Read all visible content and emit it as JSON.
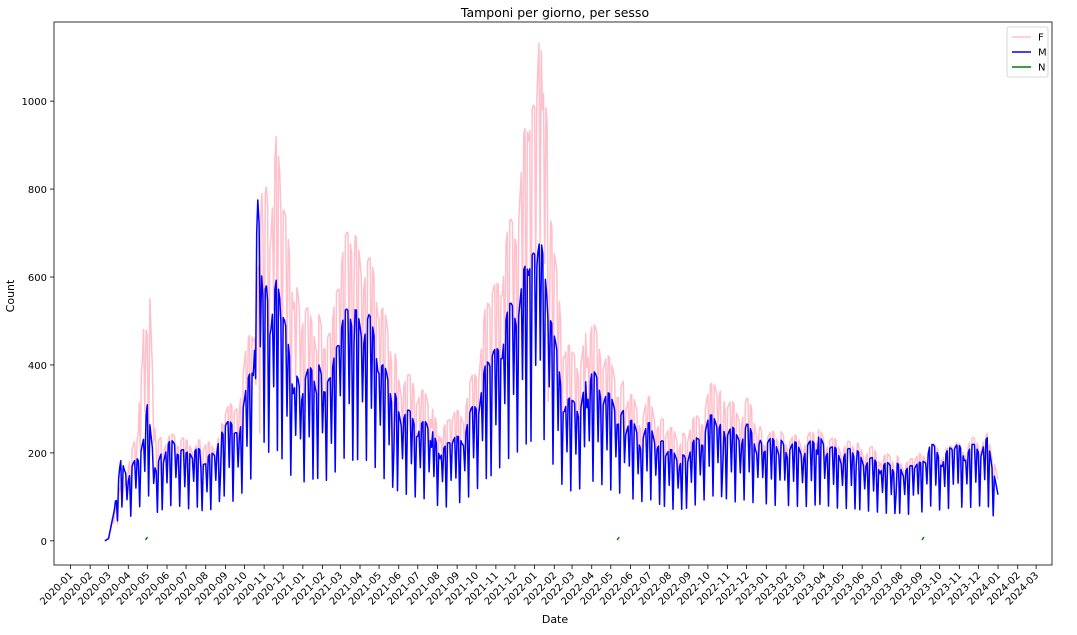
{
  "chart_data": {
    "type": "line",
    "title": "Tamponi per giorno, per sesso",
    "xlabel": "Date",
    "ylabel": "Count",
    "ylim": [
      -55,
      1180
    ],
    "yticks": [
      0,
      200,
      400,
      600,
      800,
      1000
    ],
    "xlim": [
      "2019-12-06",
      "2024-03-26"
    ],
    "xticks": [
      "2020-01",
      "2020-02",
      "2020-03",
      "2020-04",
      "2020-05",
      "2020-06",
      "2020-07",
      "2020-08",
      "2020-09",
      "2020-10",
      "2020-11",
      "2020-12",
      "2021-01",
      "2021-02",
      "2021-03",
      "2021-04",
      "2021-05",
      "2021-06",
      "2021-07",
      "2021-08",
      "2021-09",
      "2021-10",
      "2021-11",
      "2021-12",
      "2022-01",
      "2022-02",
      "2022-03",
      "2022-04",
      "2022-05",
      "2022-06",
      "2022-07",
      "2022-08",
      "2022-09",
      "2022-10",
      "2022-11",
      "2022-12",
      "2023-01",
      "2023-02",
      "2023-03",
      "2023-04",
      "2023-05",
      "2023-06",
      "2023-07",
      "2023-08",
      "2023-09",
      "2023-10",
      "2023-11",
      "2023-12",
      "2024-01",
      "2024-02",
      "2024-03"
    ],
    "legend_position": "top-right",
    "grid": false,
    "series": [
      {
        "name": "F",
        "color": "#ffc0cb",
        "points": [
          [
            "2020-02-24",
            0
          ],
          [
            "2020-03-01",
            8
          ],
          [
            "2020-03-15",
            110
          ],
          [
            "2020-04-01",
            170
          ],
          [
            "2020-04-15",
            260
          ],
          [
            "2020-04-20",
            340
          ],
          [
            "2020-04-25",
            500
          ],
          [
            "2020-05-01",
            470
          ],
          [
            "2020-05-05",
            570
          ],
          [
            "2020-05-15",
            240
          ],
          [
            "2020-06-01",
            230
          ],
          [
            "2020-06-15",
            260
          ],
          [
            "2020-07-01",
            230
          ],
          [
            "2020-07-15",
            235
          ],
          [
            "2020-08-01",
            225
          ],
          [
            "2020-08-15",
            225
          ],
          [
            "2020-09-01",
            330
          ],
          [
            "2020-09-15",
            300
          ],
          [
            "2020-10-01",
            420
          ],
          [
            "2020-10-15",
            520
          ],
          [
            "2020-10-25",
            700
          ],
          [
            "2020-11-01",
            880
          ],
          [
            "2020-11-10",
            790
          ],
          [
            "2020-11-20",
            930
          ],
          [
            "2020-12-01",
            770
          ],
          [
            "2020-12-15",
            650
          ],
          [
            "2021-01-01",
            560
          ],
          [
            "2021-01-15",
            510
          ],
          [
            "2021-02-01",
            530
          ],
          [
            "2021-02-15",
            470
          ],
          [
            "2021-03-01",
            710
          ],
          [
            "2021-03-15",
            700
          ],
          [
            "2021-04-01",
            690
          ],
          [
            "2021-04-15",
            650
          ],
          [
            "2021-05-01",
            600
          ],
          [
            "2021-05-15",
            480
          ],
          [
            "2021-06-01",
            400
          ],
          [
            "2021-06-15",
            380
          ],
          [
            "2021-07-01",
            370
          ],
          [
            "2021-07-15",
            330
          ],
          [
            "2021-08-01",
            275
          ],
          [
            "2021-08-15",
            270
          ],
          [
            "2021-09-01",
            300
          ],
          [
            "2021-09-15",
            330
          ],
          [
            "2021-10-01",
            410
          ],
          [
            "2021-10-15",
            530
          ],
          [
            "2021-11-01",
            590
          ],
          [
            "2021-11-15",
            700
          ],
          [
            "2021-12-01",
            760
          ],
          [
            "2021-12-15",
            930
          ],
          [
            "2022-01-01",
            1000
          ],
          [
            "2022-01-08",
            1140
          ],
          [
            "2022-01-15",
            1100
          ],
          [
            "2022-02-01",
            660
          ],
          [
            "2022-02-15",
            500
          ],
          [
            "2022-03-01",
            430
          ],
          [
            "2022-03-15",
            450
          ],
          [
            "2022-04-01",
            500
          ],
          [
            "2022-04-15",
            470
          ],
          [
            "2022-05-01",
            410
          ],
          [
            "2022-05-15",
            380
          ],
          [
            "2022-06-01",
            340
          ],
          [
            "2022-06-15",
            300
          ],
          [
            "2022-07-01",
            330
          ],
          [
            "2022-07-15",
            290
          ],
          [
            "2022-08-01",
            260
          ],
          [
            "2022-08-15",
            250
          ],
          [
            "2022-09-01",
            270
          ],
          [
            "2022-09-15",
            290
          ],
          [
            "2022-10-01",
            340
          ],
          [
            "2022-10-15",
            390
          ],
          [
            "2022-11-01",
            340
          ],
          [
            "2022-11-15",
            300
          ],
          [
            "2022-12-01",
            330
          ],
          [
            "2022-12-15",
            290
          ],
          [
            "2023-01-01",
            250
          ],
          [
            "2023-01-15",
            250
          ],
          [
            "2023-02-01",
            250
          ],
          [
            "2023-02-15",
            240
          ],
          [
            "2023-03-01",
            240
          ],
          [
            "2023-03-15",
            250
          ],
          [
            "2023-04-01",
            255
          ],
          [
            "2023-04-15",
            235
          ],
          [
            "2023-05-01",
            230
          ],
          [
            "2023-05-15",
            225
          ],
          [
            "2023-06-01",
            220
          ],
          [
            "2023-06-15",
            215
          ],
          [
            "2023-07-01",
            205
          ],
          [
            "2023-07-15",
            195
          ],
          [
            "2023-08-01",
            195
          ],
          [
            "2023-08-15",
            185
          ],
          [
            "2023-09-01",
            200
          ],
          [
            "2023-09-15",
            225
          ],
          [
            "2023-10-01",
            215
          ],
          [
            "2023-10-15",
            215
          ],
          [
            "2023-11-01",
            225
          ],
          [
            "2023-11-15",
            230
          ],
          [
            "2023-12-01",
            240
          ],
          [
            "2023-12-15",
            245
          ],
          [
            "2024-01-01",
            140
          ]
        ]
      },
      {
        "name": "M",
        "color": "#0000ff",
        "points": [
          [
            "2020-02-24",
            0
          ],
          [
            "2020-03-01",
            5
          ],
          [
            "2020-03-10",
            70
          ],
          [
            "2020-03-15",
            130
          ],
          [
            "2020-03-22",
            220
          ],
          [
            "2020-04-01",
            140
          ],
          [
            "2020-04-15",
            210
          ],
          [
            "2020-04-25",
            240
          ],
          [
            "2020-05-01",
            310
          ],
          [
            "2020-05-15",
            180
          ],
          [
            "2020-06-01",
            220
          ],
          [
            "2020-06-15",
            240
          ],
          [
            "2020-07-01",
            200
          ],
          [
            "2020-07-15",
            230
          ],
          [
            "2020-08-01",
            180
          ],
          [
            "2020-08-15",
            220
          ],
          [
            "2020-09-01",
            300
          ],
          [
            "2020-09-15",
            250
          ],
          [
            "2020-10-01",
            330
          ],
          [
            "2020-10-15",
            430
          ],
          [
            "2020-10-22",
            800
          ],
          [
            "2020-11-01",
            640
          ],
          [
            "2020-11-10",
            560
          ],
          [
            "2020-11-20",
            600
          ],
          [
            "2020-12-01",
            520
          ],
          [
            "2020-12-15",
            410
          ],
          [
            "2021-01-01",
            380
          ],
          [
            "2021-01-15",
            400
          ],
          [
            "2021-02-01",
            410
          ],
          [
            "2021-02-15",
            370
          ],
          [
            "2021-03-01",
            550
          ],
          [
            "2021-03-15",
            520
          ],
          [
            "2021-04-01",
            530
          ],
          [
            "2021-04-15",
            520
          ],
          [
            "2021-05-01",
            450
          ],
          [
            "2021-05-15",
            370
          ],
          [
            "2021-06-01",
            320
          ],
          [
            "2021-06-15",
            300
          ],
          [
            "2021-07-01",
            280
          ],
          [
            "2021-07-15",
            270
          ],
          [
            "2021-08-01",
            230
          ],
          [
            "2021-08-15",
            220
          ],
          [
            "2021-09-01",
            240
          ],
          [
            "2021-09-15",
            270
          ],
          [
            "2021-10-01",
            330
          ],
          [
            "2021-10-15",
            400
          ],
          [
            "2021-11-01",
            440
          ],
          [
            "2021-11-15",
            520
          ],
          [
            "2021-12-01",
            560
          ],
          [
            "2021-12-15",
            620
          ],
          [
            "2022-01-01",
            660
          ],
          [
            "2022-01-10",
            685
          ],
          [
            "2022-01-20",
            640
          ],
          [
            "2022-02-01",
            470
          ],
          [
            "2022-02-15",
            350
          ],
          [
            "2022-03-01",
            320
          ],
          [
            "2022-03-15",
            340
          ],
          [
            "2022-04-01",
            390
          ],
          [
            "2022-04-15",
            370
          ],
          [
            "2022-05-01",
            330
          ],
          [
            "2022-05-15",
            310
          ],
          [
            "2022-06-01",
            280
          ],
          [
            "2022-06-15",
            250
          ],
          [
            "2022-07-01",
            270
          ],
          [
            "2022-07-15",
            240
          ],
          [
            "2022-08-01",
            210
          ],
          [
            "2022-08-15",
            200
          ],
          [
            "2022-09-01",
            215
          ],
          [
            "2022-09-15",
            240
          ],
          [
            "2022-10-01",
            280
          ],
          [
            "2022-10-15",
            300
          ],
          [
            "2022-11-01",
            270
          ],
          [
            "2022-11-15",
            250
          ],
          [
            "2022-12-01",
            270
          ],
          [
            "2022-12-15",
            240
          ],
          [
            "2023-01-01",
            240
          ],
          [
            "2023-01-15",
            230
          ],
          [
            "2023-02-01",
            230
          ],
          [
            "2023-02-15",
            225
          ],
          [
            "2023-03-01",
            220
          ],
          [
            "2023-03-15",
            230
          ],
          [
            "2023-04-01",
            240
          ],
          [
            "2023-04-15",
            215
          ],
          [
            "2023-05-01",
            210
          ],
          [
            "2023-05-15",
            210
          ],
          [
            "2023-06-01",
            200
          ],
          [
            "2023-06-15",
            190
          ],
          [
            "2023-07-01",
            185
          ],
          [
            "2023-07-15",
            175
          ],
          [
            "2023-08-01",
            180
          ],
          [
            "2023-08-15",
            170
          ],
          [
            "2023-09-01",
            180
          ],
          [
            "2023-09-15",
            230
          ],
          [
            "2023-10-01",
            200
          ],
          [
            "2023-10-15",
            210
          ],
          [
            "2023-11-01",
            220
          ],
          [
            "2023-11-15",
            215
          ],
          [
            "2023-12-01",
            225
          ],
          [
            "2023-12-15",
            235
          ],
          [
            "2024-01-01",
            105
          ]
        ]
      },
      {
        "name": "N",
        "color": "#008000",
        "points": [
          [
            "2020-04-28",
            2
          ],
          [
            "2020-04-29",
            4
          ],
          [
            "2022-05-11",
            2
          ],
          [
            "2022-05-12",
            4
          ],
          [
            "2023-09-03",
            2
          ],
          [
            "2023-09-04",
            4
          ]
        ]
      }
    ]
  }
}
